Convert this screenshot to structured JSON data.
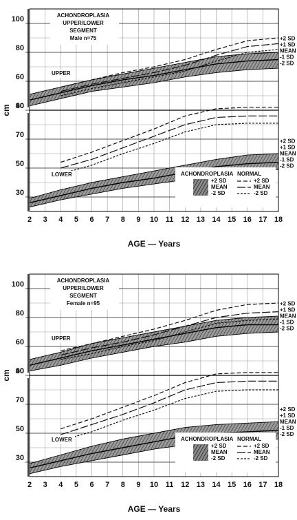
{
  "chart_data": [
    {
      "type": "line",
      "title_lines": [
        "ACHONDROPLASIA",
        "UPPER/LOWER",
        "SEGMENT"
      ],
      "sample": "Male n=75",
      "xlabel": "AGE — Years",
      "ylabel": "cm",
      "xlim": [
        2,
        18
      ],
      "xticks": [
        2,
        3,
        4,
        5,
        6,
        7,
        8,
        9,
        10,
        11,
        12,
        13,
        14,
        15,
        16,
        17,
        18
      ],
      "x": [
        2,
        4,
        6,
        8,
        10,
        12,
        14,
        16,
        18
      ],
      "groups": [
        {
          "name": "ACHONDROPLASIA",
          "style": "band",
          "color": "#444",
          "items": [
            "+2 SD",
            "MEAN",
            "-2 SD"
          ]
        },
        {
          "name": "NORMAL",
          "style": "dashed",
          "color": "#111",
          "dashes": [
            "6,3",
            "12,3",
            "3,2"
          ],
          "items": [
            "+2 SD",
            "MEAN",
            "-2 SD"
          ]
        }
      ],
      "panels": [
        {
          "label": "UPPER",
          "ylim": [
            40,
            110
          ],
          "yticks": [
            40,
            60,
            80,
            100
          ],
          "yminor": [
            50,
            70,
            90
          ],
          "side_labels": [
            "+2 SD",
            "+1 SD",
            "MEAN",
            "-1 SD",
            "-2 SD"
          ],
          "series": [
            {
              "values": [
                51,
                56,
                61,
                65,
                69,
                73,
                77,
                79,
                80
              ]
            },
            {
              "values": [
                47,
                52,
                57,
                61,
                64,
                68,
                72,
                74,
                75
              ]
            },
            {
              "values": [
                43,
                48,
                53,
                56,
                59,
                63,
                66,
                68,
                69
              ]
            },
            {
              "values": [
                null,
                56,
                61,
                66,
                70,
                75,
                82,
                88,
                90
              ]
            },
            {
              "values": [
                null,
                53,
                58,
                62,
                66,
                71,
                78,
                84,
                86
              ]
            },
            {
              "values": [
                null,
                50,
                55,
                59,
                63,
                67,
                74,
                80,
                82
              ]
            }
          ]
        },
        {
          "label": "LOWER",
          "ylim": [
            20,
            90
          ],
          "yticks": [
            30,
            50,
            70,
            90
          ],
          "yminor": [
            40,
            60,
            80
          ],
          "side_labels": [
            "+2 SD",
            "+1 SD",
            "MEAN",
            "-1 SD",
            "-2 SD"
          ],
          "series": [
            {
              "values": [
                29,
                35,
                40,
                44,
                48,
                52,
                56,
                59,
                60
              ]
            },
            {
              "values": [
                26,
                31,
                36,
                40,
                43,
                47,
                51,
                53,
                54
              ]
            },
            {
              "values": [
                23,
                28,
                32,
                36,
                39,
                42,
                46,
                48,
                49
              ]
            },
            {
              "values": [
                null,
                54,
                61,
                69,
                77,
                86,
                91,
                92,
                92
              ]
            },
            {
              "values": [
                null,
                50,
                56,
                64,
                72,
                80,
                85,
                86,
                86
              ]
            },
            {
              "values": [
                null,
                46,
                52,
                60,
                67,
                75,
                80,
                81,
                81
              ]
            }
          ]
        }
      ]
    },
    {
      "type": "line",
      "title_lines": [
        "ACHONDROPLASIA",
        "UPPER/LOWER",
        "SEGMENT"
      ],
      "sample": "Female n=95",
      "xlabel": "AGE — Years",
      "ylabel": "cm",
      "xlim": [
        2,
        18
      ],
      "xticks": [
        2,
        3,
        4,
        5,
        6,
        7,
        8,
        9,
        10,
        11,
        12,
        13,
        14,
        15,
        16,
        17,
        18
      ],
      "x": [
        2,
        4,
        6,
        8,
        10,
        12,
        14,
        16,
        18
      ],
      "groups": [
        {
          "name": "ACHONDROPLASIA",
          "style": "band",
          "color": "#444",
          "items": [
            "+2 SD",
            "MEAN",
            "-2 SD"
          ]
        },
        {
          "name": "NORMAL",
          "style": "dashed",
          "color": "#111",
          "dashes": [
            "6,3",
            "12,3",
            "3,2"
          ],
          "items": [
            "+2 SD",
            "MEAN",
            "-2 SD"
          ]
        }
      ],
      "panels": [
        {
          "label": "UPPER",
          "ylim": [
            40,
            110
          ],
          "yticks": [
            40,
            60,
            80,
            100
          ],
          "yminor": [
            50,
            70,
            90
          ],
          "side_labels": [
            "+2 SD",
            "+1 SD",
            "MEAN",
            "-1 SD",
            "-2 SD"
          ],
          "series": [
            {
              "values": [
                51,
                56,
                62,
                66,
                70,
                74,
                78,
                80,
                81
              ]
            },
            {
              "values": [
                47,
                52,
                57,
                61,
                65,
                69,
                73,
                75,
                75
              ]
            },
            {
              "values": [
                43,
                47,
                52,
                56,
                60,
                63,
                67,
                69,
                70
              ]
            },
            {
              "values": [
                null,
                57,
                62,
                67,
                72,
                78,
                85,
                89,
                90
              ]
            },
            {
              "values": [
                null,
                54,
                59,
                63,
                68,
                74,
                80,
                83,
                84
              ]
            },
            {
              "values": [
                null,
                51,
                55,
                60,
                64,
                70,
                76,
                78,
                79
              ]
            }
          ]
        },
        {
          "label": "LOWER",
          "ylim": [
            20,
            90
          ],
          "yticks": [
            30,
            50,
            70,
            90
          ],
          "yminor": [
            40,
            60,
            80
          ],
          "side_labels": [
            "+2 SD",
            "+1 SD",
            "MEAN",
            "-1 SD",
            "-2 SD"
          ],
          "series": [
            {
              "values": [
                29,
                35,
                41,
                46,
                50,
                54,
                56,
                57,
                58
              ]
            },
            {
              "values": [
                26,
                31,
                36,
                40,
                44,
                48,
                50,
                51,
                52
              ]
            },
            {
              "values": [
                22,
                27,
                31,
                35,
                39,
                42,
                44,
                45,
                46
              ]
            },
            {
              "values": [
                null,
                53,
                60,
                68,
                76,
                85,
                91,
                92,
                92
              ]
            },
            {
              "values": [
                null,
                49,
                56,
                63,
                71,
                80,
                85,
                86,
                86
              ]
            },
            {
              "values": [
                null,
                45,
                51,
                59,
                66,
                74,
                79,
                80,
                80
              ]
            }
          ]
        }
      ]
    }
  ]
}
